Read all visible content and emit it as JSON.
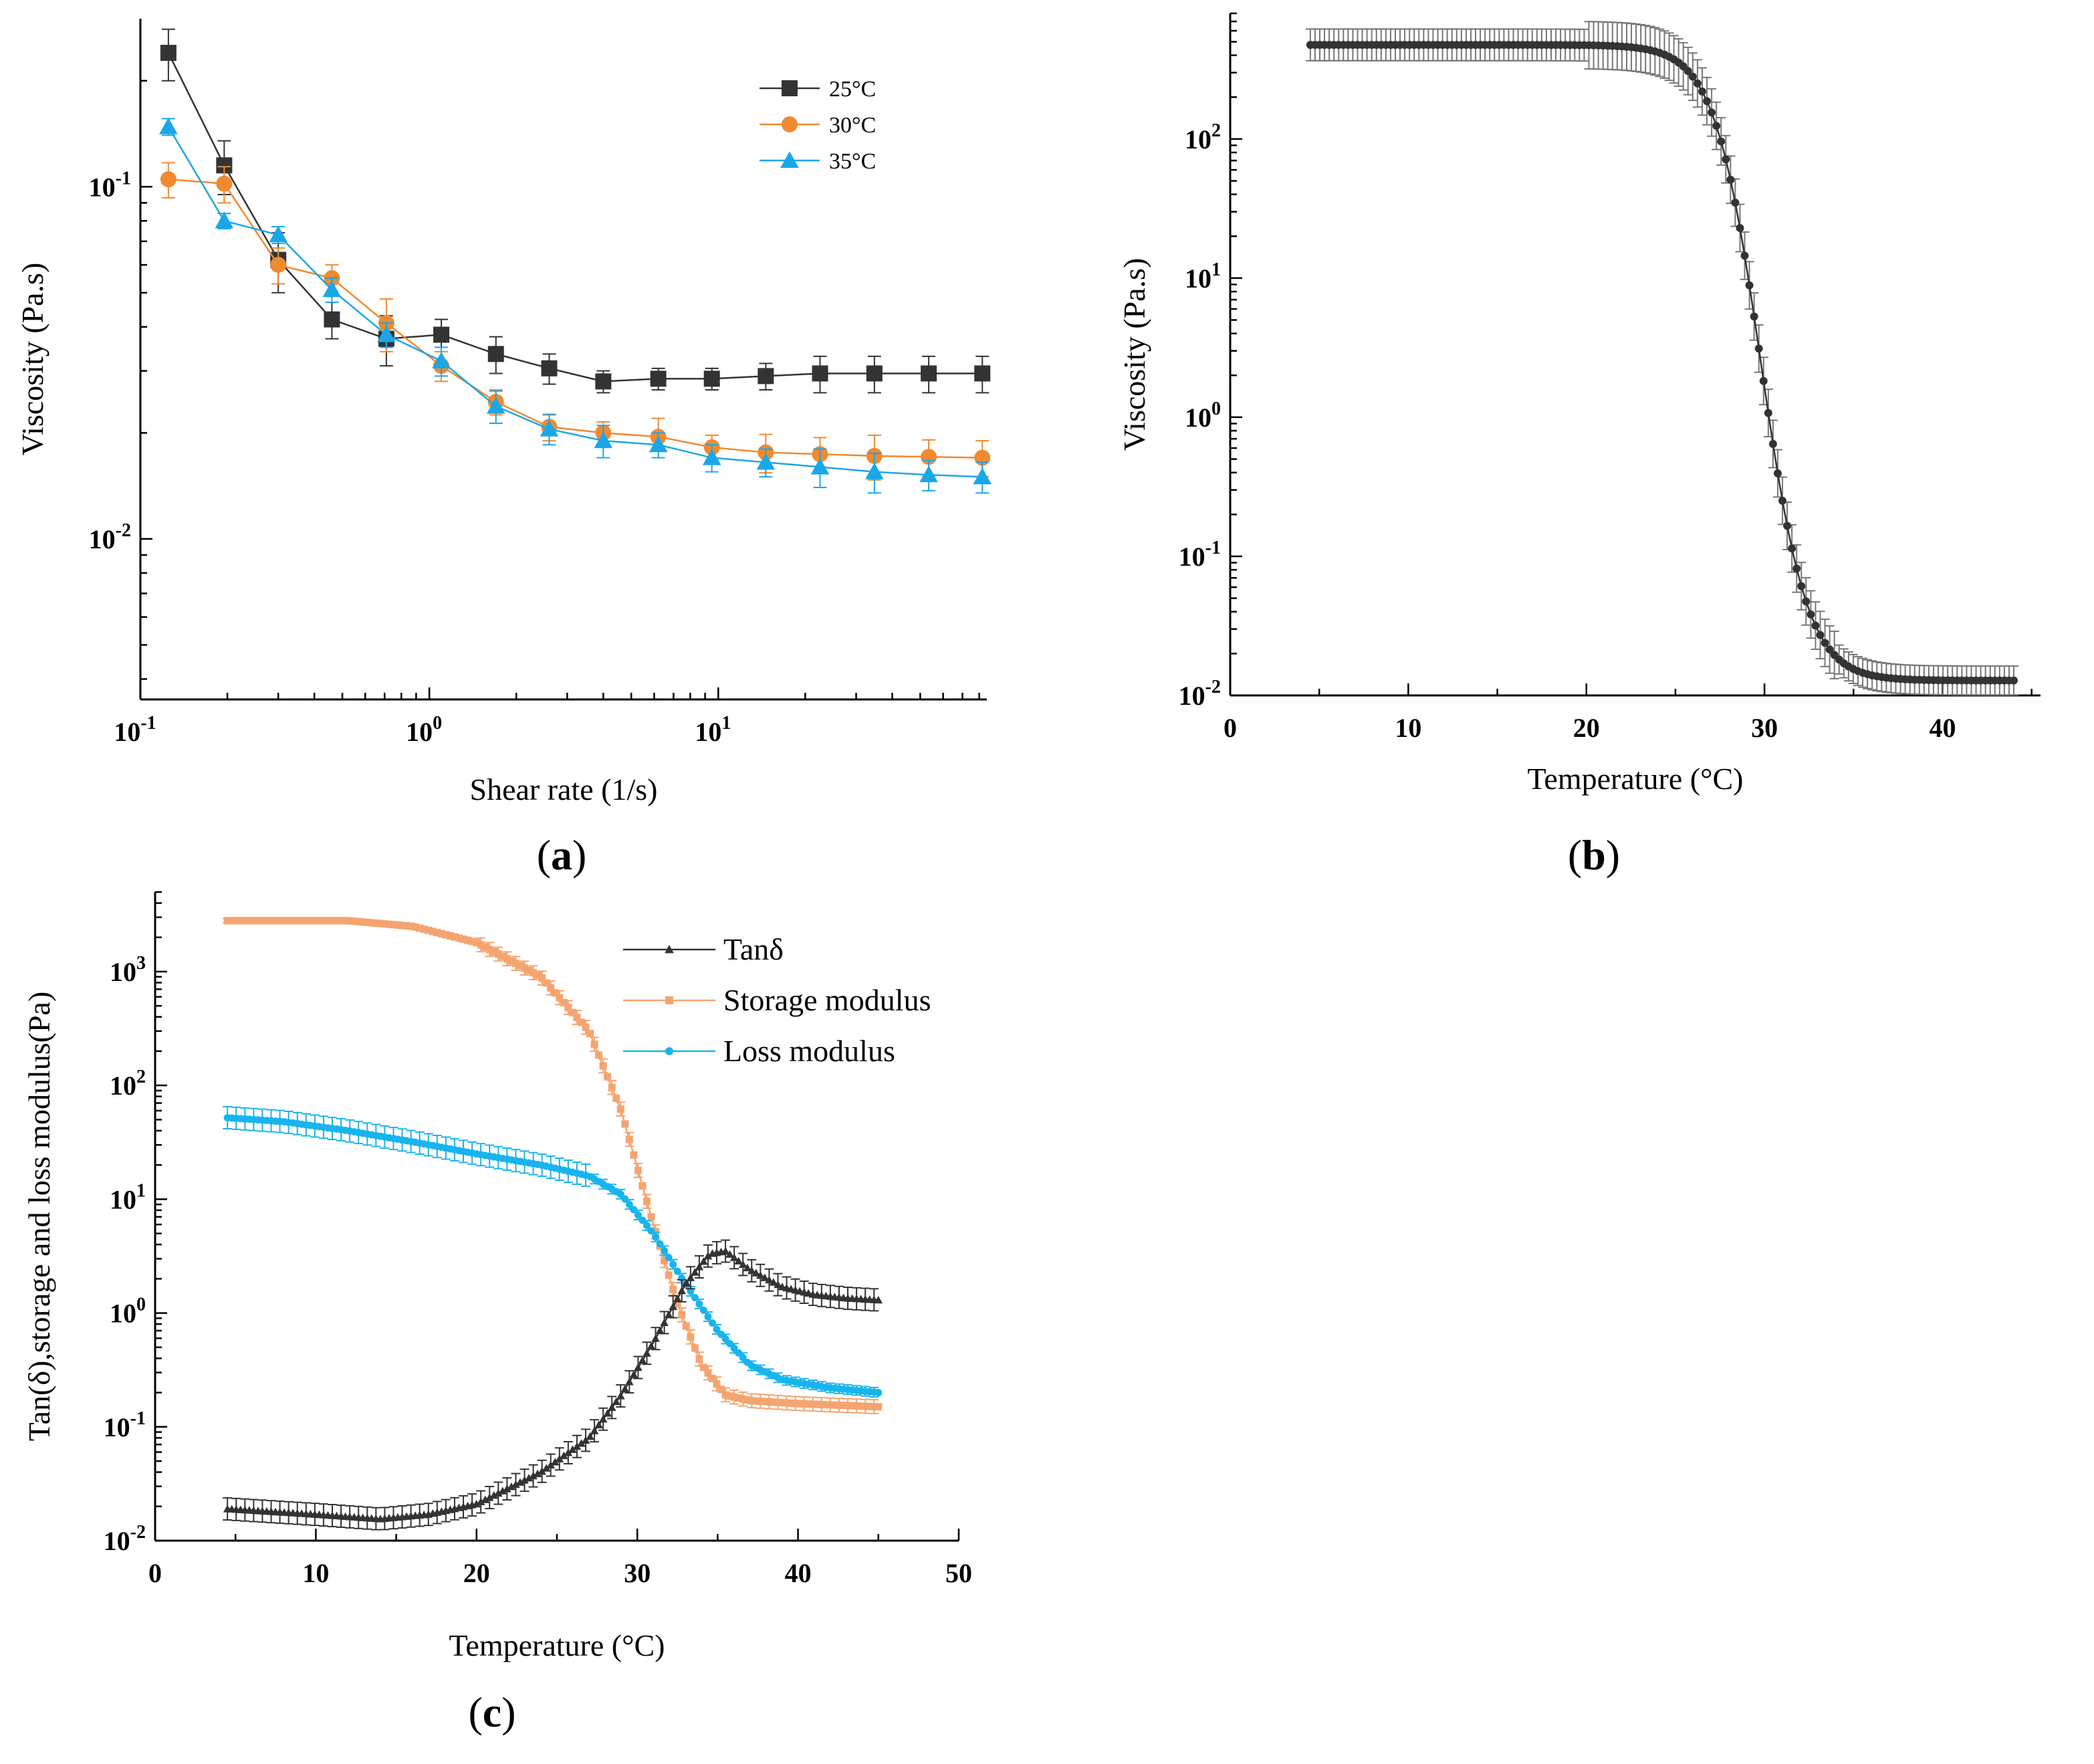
{
  "panel_labels": [
    "a",
    "b",
    "c"
  ],
  "colors": {
    "black": "#333333",
    "orange": "#f08a30",
    "blue": "#1aa7e8",
    "orange_c": "#f5a470",
    "blue_c": "#18b4ee"
  },
  "chart_data": [
    {
      "id": "a",
      "type": "scatter",
      "xlabel": "Shear rate (1/s)",
      "ylabel": "Viscosity (Pa.s)",
      "xscale": "log",
      "yscale": "log",
      "xlim": [
        0.1,
        85
      ],
      "ylim": [
        0.0035,
        0.3
      ],
      "xticks": [
        {
          "v": 0.1,
          "b": "10",
          "e": "-1"
        },
        {
          "v": 1,
          "b": "10",
          "e": "0"
        },
        {
          "v": 10,
          "b": "10",
          "e": "1"
        }
      ],
      "yticks": [
        {
          "v": 0.01,
          "b": "10",
          "e": "-2"
        },
        {
          "v": 0.1,
          "b": "10",
          "e": "-1"
        }
      ],
      "legend_position": "top-right",
      "x": [
        0.125,
        0.195,
        0.3,
        0.46,
        0.71,
        1.1,
        1.7,
        2.6,
        4.0,
        6.2,
        9.5,
        14.6,
        22.5,
        34.7,
        53.5,
        82
      ],
      "series": [
        {
          "name": "25°C",
          "marker": "square",
          "color_key": "black",
          "values": [
            0.24,
            0.115,
            0.062,
            0.042,
            0.037,
            0.038,
            0.0335,
            0.0305,
            0.028,
            0.0285,
            0.0285,
            0.029,
            0.0295,
            0.0295,
            0.0295,
            0.0295
          ],
          "err": [
            0.04,
            0.02,
            0.012,
            0.005,
            0.006,
            0.004,
            0.004,
            0.003,
            0.002,
            0.002,
            0.002,
            0.0025,
            0.0035,
            0.0035,
            0.0035,
            0.0035
          ]
        },
        {
          "name": "30°C",
          "marker": "circle",
          "color_key": "orange",
          "values": [
            0.105,
            0.102,
            0.06,
            0.055,
            0.041,
            0.031,
            0.0245,
            0.0208,
            0.02,
            0.0195,
            0.0182,
            0.0176,
            0.0174,
            0.0172,
            0.0171,
            0.017
          ],
          "err": [
            0.012,
            0.012,
            0.007,
            0.005,
            0.007,
            0.003,
            0.002,
            0.0018,
            0.0015,
            0.0025,
            0.0015,
            0.0022,
            0.002,
            0.0025,
            0.002,
            0.002
          ]
        },
        {
          "name": "35°C",
          "marker": "triangle",
          "color_key": "blue",
          "values": [
            0.148,
            0.08,
            0.073,
            0.051,
            0.038,
            0.032,
            0.0238,
            0.0205,
            0.019,
            0.0185,
            0.017,
            0.0165,
            0.016,
            0.0155,
            0.0152,
            0.015
          ],
          "err": [
            0.008,
            0.004,
            0.004,
            0.004,
            0.003,
            0.003,
            0.0025,
            0.002,
            0.002,
            0.0015,
            0.0015,
            0.0015,
            0.002,
            0.002,
            0.0015,
            0.0015
          ]
        }
      ]
    },
    {
      "id": "b",
      "type": "scatter",
      "xlabel": "Temperature (°C)",
      "ylabel": "Viscosity (Pa.s)",
      "xscale": "linear",
      "yscale": "log",
      "xlim": [
        0,
        45.5
      ],
      "ylim": [
        0.01,
        800
      ],
      "xticks": [
        0,
        10,
        20,
        30,
        40
      ],
      "yticks": [
        {
          "v": 0.01,
          "b": "10",
          "e": "-2"
        },
        {
          "v": 0.1,
          "b": "10",
          "e": "-1"
        },
        {
          "v": 1,
          "b": "10",
          "e": "0"
        },
        {
          "v": 10,
          "b": "10",
          "e": "1"
        },
        {
          "v": 100,
          "b": "10",
          "e": "2"
        }
      ],
      "x_range": [
        4.5,
        44
      ],
      "points": 150,
      "model": "sigmoid",
      "model_params": {
        "low": 0.0128,
        "high": 475,
        "mid": 29.8,
        "width": 1.3,
        "shoulder": 7
      },
      "error_fraction": 0.3,
      "marker": "circle",
      "color_key": "black"
    },
    {
      "id": "c",
      "type": "scatter",
      "xlabel": "Temperature (°C)",
      "ylabel": "Tan(δ),storage and loss modulus(Pa)",
      "xscale": "linear",
      "yscale": "log",
      "xlim": [
        0,
        50
      ],
      "ylim": [
        0.01,
        5000
      ],
      "xticks": [
        0,
        10,
        20,
        30,
        40,
        50
      ],
      "yticks": [
        {
          "v": 0.01,
          "b": "10",
          "e": "-2"
        },
        {
          "v": 0.1,
          "b": "10",
          "e": "-1"
        },
        {
          "v": 1,
          "b": "10",
          "e": "0"
        },
        {
          "v": 10,
          "b": "10",
          "e": "1"
        },
        {
          "v": 100,
          "b": "10",
          "e": "2"
        },
        {
          "v": 1000,
          "b": "10",
          "e": "3"
        }
      ],
      "legend_position": "top-right",
      "x_range": [
        4.5,
        45
      ],
      "points": 150,
      "series": [
        {
          "name": "Tanδ",
          "marker": "triangle",
          "color_key": "black",
          "knots": [
            [
              4.5,
              0.019
            ],
            [
              10,
              0.017
            ],
            [
              14,
              0.0155
            ],
            [
              17,
              0.017
            ],
            [
              20,
              0.021
            ],
            [
              24,
              0.04
            ],
            [
              27,
              0.08
            ],
            [
              29,
              0.19
            ],
            [
              31,
              0.55
            ],
            [
              33,
              1.8
            ],
            [
              34.5,
              3.3
            ],
            [
              35.5,
              3.5
            ],
            [
              37,
              2.4
            ],
            [
              39,
              1.7
            ],
            [
              41,
              1.45
            ],
            [
              43,
              1.35
            ],
            [
              45,
              1.3
            ]
          ],
          "error_fraction": 0.25
        },
        {
          "name": "Storage modulus",
          "marker": "square",
          "color_key": "orange_c",
          "knots": [
            [
              4.5,
              2800
            ],
            [
              12,
              2800
            ],
            [
              16,
              2500
            ],
            [
              20,
              1800
            ],
            [
              24,
              900
            ],
            [
              27,
              300
            ],
            [
              29,
              60
            ],
            [
              31,
              6
            ],
            [
              32.5,
              1.2
            ],
            [
              34,
              0.35
            ],
            [
              35.5,
              0.19
            ],
            [
              37,
              0.17
            ],
            [
              40,
              0.16
            ],
            [
              45,
              0.15
            ]
          ],
          "error_fraction": 0.15
        },
        {
          "name": "Loss modulus",
          "marker": "circle",
          "color_key": "blue_c",
          "knots": [
            [
              4.5,
              52
            ],
            [
              8,
              48
            ],
            [
              12,
              40
            ],
            [
              16,
              32
            ],
            [
              20,
              25
            ],
            [
              24,
              20
            ],
            [
              27,
              16
            ],
            [
              29,
              11
            ],
            [
              31,
              5
            ],
            [
              33,
              1.8
            ],
            [
              35,
              0.7
            ],
            [
              37,
              0.35
            ],
            [
              39,
              0.26
            ],
            [
              42,
              0.22
            ],
            [
              45,
              0.2
            ]
          ],
          "error_fraction": 0.25
        }
      ]
    }
  ]
}
